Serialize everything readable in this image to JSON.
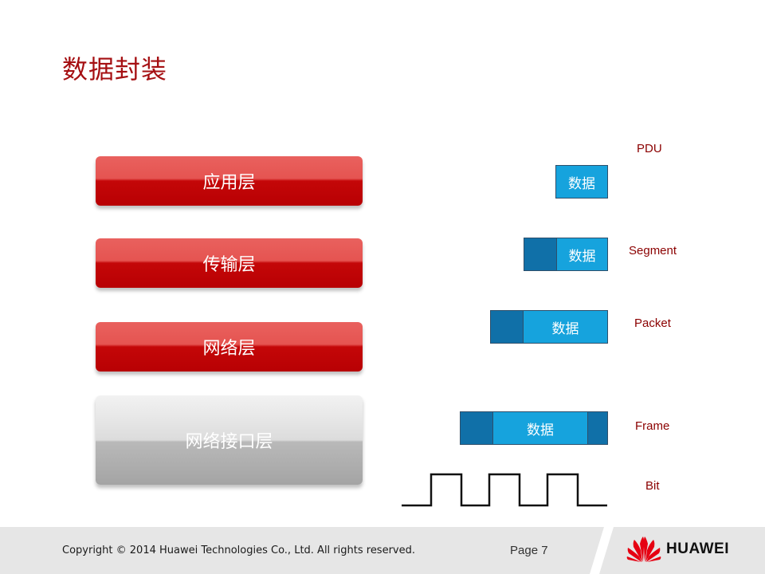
{
  "slide": {
    "title": "数据封装"
  },
  "layers": [
    {
      "label": "应用层"
    },
    {
      "label": "传输层"
    },
    {
      "label": "网络层"
    },
    {
      "label": "网络接口层"
    }
  ],
  "pdu": {
    "header_label": "PDU",
    "data_text": "数据",
    "units": [
      "Segment",
      "Packet",
      "Frame",
      "Bit"
    ]
  },
  "colors": {
    "title": "#a50f12",
    "layer_red": "#c40708",
    "layer_grey": "#b9b9b9",
    "pdu_header": "#1070a8",
    "pdu_data": "#16a3dd",
    "label": "#8b0000"
  },
  "footer": {
    "copyright": "Copyright © 2014 Huawei Technologies Co., Ltd. All rights reserved.",
    "page": "Page 7",
    "brand": "HUAWEI"
  }
}
